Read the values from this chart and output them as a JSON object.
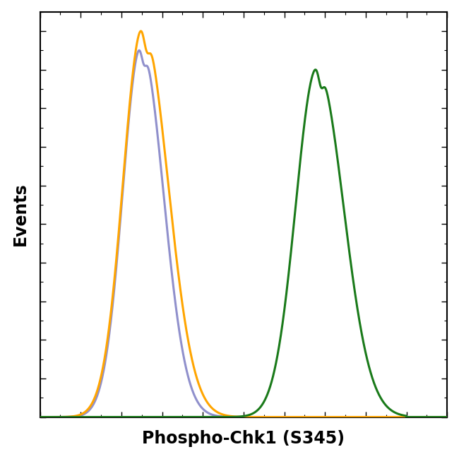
{
  "title": "",
  "xlabel": "Phospho-Chk1 (S345)",
  "ylabel": "Events",
  "xlabel_fontsize": 17,
  "ylabel_fontsize": 17,
  "xlabel_fontweight": "bold",
  "ylabel_fontweight": "bold",
  "background_color": "#ffffff",
  "line_color_orange": "#FFA500",
  "line_color_blue": "#9090CC",
  "line_color_green": "#1A7A1A",
  "linewidth": 2.2,
  "xlim": [
    0,
    1000
  ],
  "ylim": [
    0,
    1.05
  ],
  "figsize": [
    6.5,
    6.5
  ],
  "dpi": 100
}
